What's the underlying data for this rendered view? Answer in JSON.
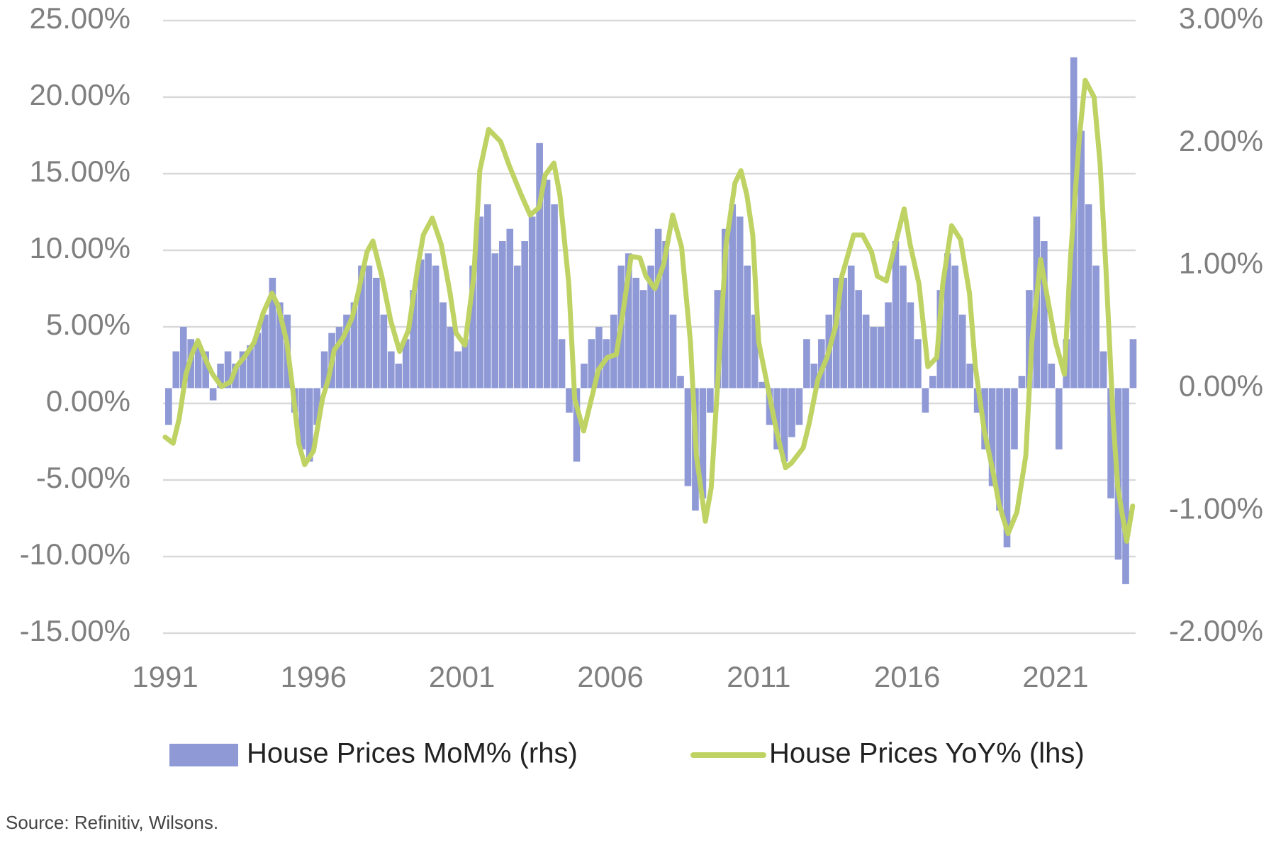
{
  "chart_data": {
    "type": "bar_line",
    "legend": "bottom",
    "grid": true,
    "source": "Source: Refinitiv, Wilsons.",
    "xlim": [
      1991,
      2023.7
    ],
    "xticks": [
      1991,
      1996,
      2001,
      2006,
      2011,
      2016,
      2021
    ],
    "ylim": [
      -15,
      25
    ],
    "yticks": [
      {
        "value": -15,
        "label": "-15.00%"
      },
      {
        "value": -10,
        "label": "-10.00%"
      },
      {
        "value": -5,
        "label": "-5.00%"
      },
      {
        "value": 0,
        "label": "0.00%"
      },
      {
        "value": 5,
        "label": "5.00%"
      },
      {
        "value": 10,
        "label": "10.00%"
      },
      {
        "value": 15,
        "label": "15.00%"
      },
      {
        "value": 20,
        "label": "20.00%"
      },
      {
        "value": 25,
        "label": "25.00%"
      }
    ],
    "y2lim": [
      -2,
      3
    ],
    "y2ticks": [
      {
        "value": -2,
        "label": "-2.00%"
      },
      {
        "value": -1,
        "label": "-1.00%"
      },
      {
        "value": 0,
        "label": "0.00%"
      },
      {
        "value": 1,
        "label": "1.00%"
      },
      {
        "value": 2,
        "label": "2.00%"
      },
      {
        "value": 3,
        "label": "3.00%"
      }
    ],
    "series": [
      {
        "name": "House Prices MoM% (rhs)",
        "type": "bar",
        "axis": "y2",
        "color": "#8f99d6",
        "x": [
          1991,
          1991.25,
          1991.5,
          1991.75,
          1992,
          1992.25,
          1992.5,
          1992.75,
          1993,
          1993.25,
          1993.5,
          1993.75,
          1994,
          1994.25,
          1994.5,
          1994.75,
          1995,
          1995.25,
          1995.5,
          1995.75,
          1996,
          1996.25,
          1996.5,
          1996.75,
          1997,
          1997.25,
          1997.5,
          1997.75,
          1998,
          1998.25,
          1998.5,
          1998.75,
          1999,
          1999.25,
          1999.5,
          1999.75,
          2000,
          2000.25,
          2000.5,
          2000.75,
          2001,
          2001.25,
          2001.5,
          2001.75,
          2002,
          2002.25,
          2002.5,
          2002.75,
          2003,
          2003.25,
          2003.5,
          2003.75,
          2004,
          2004.25,
          2004.5,
          2004.75,
          2005,
          2005.25,
          2005.5,
          2005.75,
          2006,
          2006.25,
          2006.5,
          2006.75,
          2007,
          2007.25,
          2007.5,
          2007.75,
          2008,
          2008.25,
          2008.5,
          2008.75,
          2009,
          2009.25,
          2009.5,
          2009.75,
          2010,
          2010.25,
          2010.5,
          2010.75,
          2011,
          2011.25,
          2011.5,
          2011.75,
          2012,
          2012.25,
          2012.5,
          2012.75,
          2013,
          2013.25,
          2013.5,
          2013.75,
          2014,
          2014.25,
          2014.5,
          2014.75,
          2015,
          2015.25,
          2015.5,
          2015.75,
          2016,
          2016.25,
          2016.5,
          2016.75,
          2017,
          2017.25,
          2017.5,
          2017.75,
          2018,
          2018.25,
          2018.5,
          2018.75,
          2019,
          2019.25,
          2019.5,
          2019.75,
          2020,
          2020.25,
          2020.5,
          2020.75,
          2021,
          2021.25,
          2021.5,
          2021.75,
          2022,
          2022.25,
          2022.5,
          2022.75,
          2023,
          2023.25,
          2023.5
        ],
        "values": [
          -0.3,
          0.3,
          0.5,
          0.4,
          0.35,
          0.3,
          -0.1,
          0.2,
          0.3,
          0.2,
          0.3,
          0.35,
          0.45,
          0.6,
          0.9,
          0.7,
          0.6,
          -0.2,
          -0.5,
          -0.6,
          -0.3,
          0.3,
          0.45,
          0.5,
          0.6,
          0.7,
          1.0,
          1.0,
          0.9,
          0.6,
          0.3,
          0.2,
          0.4,
          0.8,
          1.05,
          1.1,
          1.0,
          0.7,
          0.5,
          0.3,
          0.4,
          1.0,
          1.4,
          1.5,
          1.1,
          1.2,
          1.3,
          1.0,
          1.2,
          1.4,
          2.0,
          1.7,
          1.5,
          0.4,
          -0.2,
          -0.6,
          0.2,
          0.4,
          0.5,
          0.4,
          0.6,
          1.0,
          1.1,
          0.9,
          0.8,
          1.0,
          1.3,
          1.2,
          0.6,
          0.1,
          -0.8,
          -1.0,
          -0.9,
          -0.2,
          0.8,
          1.3,
          1.5,
          1.4,
          1.0,
          0.6,
          0.05,
          -0.3,
          -0.5,
          -0.6,
          -0.4,
          -0.3,
          0.4,
          0.2,
          0.4,
          0.6,
          0.9,
          0.9,
          1.0,
          0.8,
          0.6,
          0.5,
          0.5,
          0.7,
          1.2,
          1.0,
          0.7,
          0.4,
          -0.2,
          0.1,
          0.8,
          1.1,
          1.0,
          0.6,
          0.2,
          -0.2,
          -0.5,
          -0.8,
          -1.0,
          -1.3,
          -0.5,
          0.1,
          0.8,
          1.4,
          1.2,
          0.2,
          -0.5,
          0.4,
          2.7,
          2.1,
          1.5,
          1.0,
          0.3,
          -0.9,
          -1.4,
          -1.6,
          0.4
        ]
      },
      {
        "name": "House Prices YoY% (lhs)",
        "type": "line",
        "color": "#bfd264",
        "x": [
          1991.0,
          1991.27,
          1991.47,
          1991.7,
          1991.9,
          1992.1,
          1992.4,
          1992.6,
          1992.9,
          1993.2,
          1993.4,
          1993.7,
          1994.0,
          1994.3,
          1994.6,
          1994.8,
          1995.1,
          1995.3,
          1995.5,
          1995.7,
          1996.0,
          1996.3,
          1996.5,
          1996.7,
          1997.0,
          1997.3,
          1997.5,
          1997.8,
          1998.0,
          1998.3,
          1998.6,
          1998.9,
          1999.2,
          1999.5,
          1999.7,
          2000.0,
          2000.3,
          2000.6,
          2000.8,
          2001.1,
          2001.4,
          2001.6,
          2001.9,
          2002.3,
          2002.6,
          2003.0,
          2003.3,
          2003.6,
          2003.8,
          2004.1,
          2004.3,
          2004.6,
          2004.8,
          2005.1,
          2005.3,
          2005.6,
          2005.9,
          2006.2,
          2006.4,
          2006.7,
          2007.0,
          2007.2,
          2007.5,
          2007.8,
          2008.1,
          2008.4,
          2008.7,
          2008.9,
          2009.2,
          2009.4,
          2009.7,
          2009.9,
          2010.2,
          2010.4,
          2010.6,
          2010.8,
          2011.0,
          2011.3,
          2011.6,
          2011.9,
          2012.1,
          2012.5,
          2012.7,
          2013.0,
          2013.3,
          2013.6,
          2013.8,
          2014.2,
          2014.5,
          2014.8,
          2015.0,
          2015.3,
          2015.6,
          2015.9,
          2016.1,
          2016.4,
          2016.7,
          2017.0,
          2017.2,
          2017.5,
          2017.8,
          2018.1,
          2018.3,
          2018.6,
          2018.9,
          2019.1,
          2019.4,
          2019.7,
          2020.0,
          2020.2,
          2020.5,
          2020.7,
          2021.0,
          2021.3,
          2021.5,
          2021.8,
          2022.0,
          2022.3,
          2022.5,
          2022.7,
          2022.95,
          2023.1,
          2023.4,
          2023.6
        ],
        "values": [
          -2.2,
          -2.6,
          -1.0,
          1.9,
          3.2,
          4.1,
          2.7,
          1.9,
          1.1,
          1.4,
          2.4,
          3.1,
          4.0,
          5.9,
          7.2,
          6.4,
          4.0,
          0.9,
          -2.6,
          -4.0,
          -3.1,
          0.3,
          1.6,
          3.5,
          4.3,
          5.6,
          7.2,
          9.9,
          10.6,
          8.3,
          5.4,
          3.4,
          4.8,
          8.8,
          11.0,
          12.1,
          10.4,
          7.2,
          4.6,
          3.8,
          8.3,
          15.2,
          17.9,
          17.1,
          15.5,
          13.6,
          12.3,
          12.8,
          14.9,
          15.7,
          13.6,
          7.8,
          0.3,
          -1.8,
          -0.2,
          2.2,
          3.0,
          3.2,
          5.6,
          9.6,
          9.5,
          8.3,
          7.5,
          9.1,
          12.3,
          10.2,
          4.0,
          -3.4,
          -7.7,
          -5.5,
          4.0,
          10.4,
          14.4,
          15.2,
          13.6,
          11.0,
          4.0,
          1.1,
          -1.8,
          -4.2,
          -3.9,
          -2.9,
          -1.3,
          1.6,
          3.0,
          5.1,
          8.3,
          11.0,
          11.0,
          9.9,
          8.3,
          8.0,
          10.4,
          12.7,
          10.4,
          7.8,
          2.4,
          3.0,
          7.8,
          11.6,
          10.7,
          7.2,
          2.4,
          -1.8,
          -4.5,
          -6.6,
          -8.5,
          -7.1,
          -3.4,
          4.0,
          9.4,
          7.2,
          4.0,
          1.9,
          9.4,
          17.3,
          21.1,
          20.0,
          15.7,
          8.8,
          -1.3,
          -5.5,
          -9.0,
          -6.7
        ]
      }
    ]
  }
}
